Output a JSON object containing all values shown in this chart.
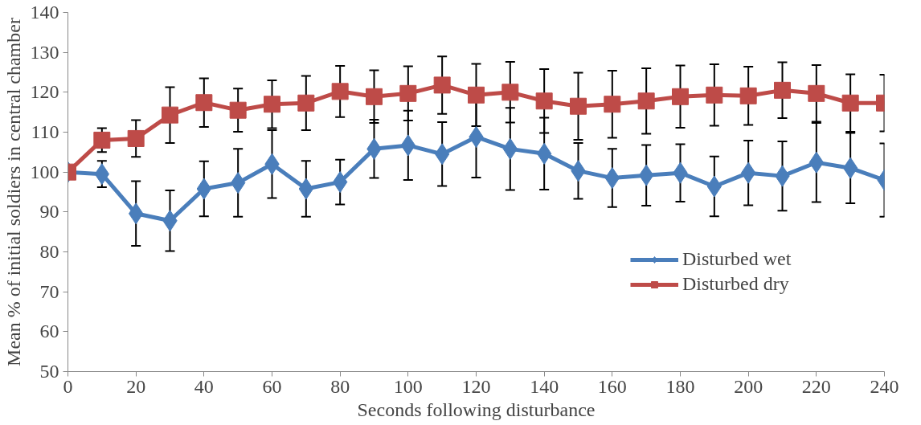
{
  "chart_data": {
    "type": "line",
    "xlabel": "Seconds following disturbance",
    "ylabel": "Mean % of initial soldiers in central chamber",
    "x": [
      0,
      10,
      20,
      30,
      40,
      50,
      60,
      70,
      80,
      90,
      100,
      110,
      120,
      130,
      140,
      150,
      160,
      170,
      180,
      190,
      200,
      210,
      220,
      230,
      240
    ],
    "series": [
      {
        "name": "Disturbed wet",
        "color": "#4a7ebb",
        "marker": "diamond",
        "values": [
          100,
          99.5,
          89.6,
          87.8,
          95.8,
          97.3,
          102,
          95.8,
          97.5,
          105.8,
          106.7,
          104.5,
          108.8,
          105.8,
          104.6,
          100.3,
          98.5,
          99.2,
          99.8,
          96.4,
          99.8,
          99,
          102.4,
          101,
          98
        ],
        "errors": [
          null,
          3.3,
          8.1,
          7.6,
          6.9,
          8.5,
          8.5,
          7,
          5.6,
          7.3,
          8.7,
          8,
          10.2,
          10.3,
          9,
          7,
          7.3,
          7.6,
          7.2,
          7.5,
          8.1,
          8.7,
          9.9,
          8.8,
          9.2
        ]
      },
      {
        "name": "Disturbed dry",
        "color": "#be4b48",
        "marker": "square",
        "values": [
          100,
          108,
          108.4,
          114.3,
          117.4,
          115.5,
          117,
          117.3,
          120.2,
          118.9,
          119.7,
          121.8,
          119.3,
          120,
          117.8,
          116.5,
          117,
          117.8,
          118.9,
          119.3,
          119.1,
          120.5,
          119.7,
          117.3,
          117.3
        ],
        "errors": [
          null,
          3,
          4.6,
          7,
          6.1,
          5.4,
          6,
          6.8,
          6.4,
          6.6,
          6.8,
          7.2,
          7.8,
          7.6,
          8,
          8.4,
          8.4,
          8.2,
          7.8,
          7.7,
          7.3,
          7,
          7.1,
          7.2,
          7.1
        ]
      }
    ],
    "xlim": [
      0,
      240
    ],
    "xticks": [
      0,
      20,
      40,
      60,
      80,
      100,
      120,
      140,
      160,
      180,
      200,
      220,
      240
    ],
    "ylim": [
      50,
      140
    ],
    "yticks": [
      50,
      60,
      70,
      80,
      90,
      100,
      110,
      120,
      130,
      140
    ],
    "grid": false,
    "legend": "right",
    "line_style": "solid"
  }
}
